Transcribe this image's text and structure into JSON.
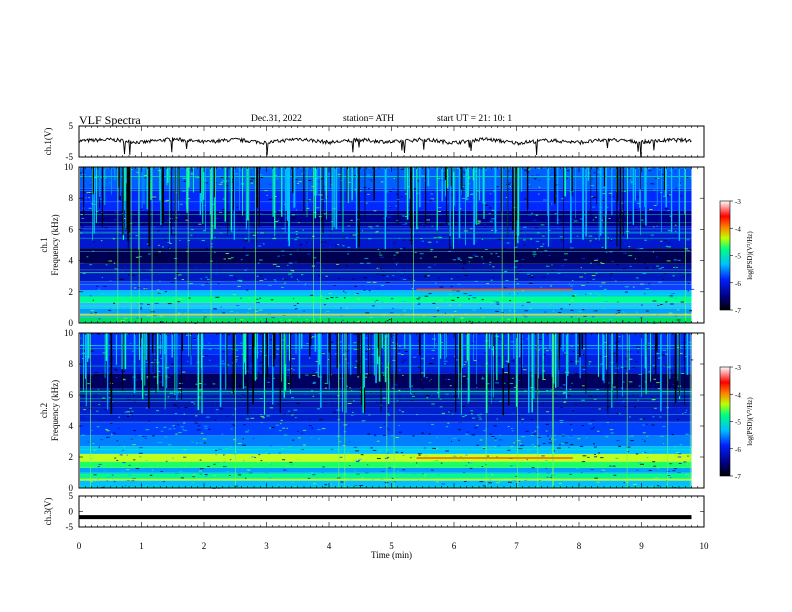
{
  "header": {
    "title": "VLF Spectra",
    "date": "Dec.31, 2022",
    "station": "station= ATH",
    "start": "start UT =   21: 10: 1"
  },
  "chart_data": [
    {
      "type": "line",
      "panel": "ch1-waveform",
      "ylabel": "ch.1(V)",
      "ylim": [
        -5,
        5
      ],
      "yticks": [
        "5",
        "-5"
      ],
      "x": [
        0.0,
        0.5,
        1.0,
        1.5,
        2.0,
        2.5,
        3.0,
        3.5,
        4.0,
        4.5,
        5.0,
        5.5,
        6.0,
        6.5,
        7.0,
        7.5,
        8.0,
        8.5,
        9.0,
        9.5,
        9.8
      ],
      "y": [
        0.2,
        0.6,
        -0.3,
        0.8,
        -0.2,
        0.6,
        -0.4,
        0.9,
        -0.3,
        0.5,
        -0.2,
        0.7,
        -0.4,
        0.8,
        -0.5,
        0.4,
        -0.3,
        0.6,
        -0.2,
        0.5,
        0.3
      ],
      "line_color": "#000000"
    },
    {
      "type": "heatmap",
      "panel": "ch1-spectrogram",
      "ylabel": "ch.1\nFrequency (kHz)",
      "ylim": [
        0,
        10
      ],
      "yticks": [
        "0",
        "2",
        "4",
        "6",
        "8",
        "10"
      ],
      "colorbar": {
        "label": "log(PSD)(V²/Hz)",
        "ticks": [
          "-3",
          "-4",
          "-5",
          "-6",
          "-7"
        ],
        "range": [
          -7,
          -3
        ]
      }
    },
    {
      "type": "heatmap",
      "panel": "ch2-spectrogram",
      "ylabel": "ch.2\nFrequency (kHz)",
      "ylim": [
        0,
        10
      ],
      "yticks": [
        "0",
        "2",
        "4",
        "6",
        "8",
        "10"
      ],
      "colorbar": {
        "label": "log(PSD)(V²/Hz)",
        "ticks": [
          "-3",
          "-4",
          "-5",
          "-6",
          "-7"
        ],
        "range": [
          -7,
          -3
        ]
      }
    },
    {
      "type": "line",
      "panel": "ch3-waveform",
      "ylabel": "ch.3(V)",
      "ylim": [
        -5,
        5
      ],
      "yticks": [
        "5",
        "0",
        "-5"
      ],
      "x": [
        0.0,
        9.8
      ],
      "y": [
        -1.8,
        -1.8
      ],
      "xlabel": "Time (min)",
      "xticks": [
        "0",
        "1",
        "2",
        "3",
        "4",
        "5",
        "6",
        "7",
        "8",
        "9",
        "10"
      ],
      "xlim": [
        0,
        10
      ]
    }
  ]
}
